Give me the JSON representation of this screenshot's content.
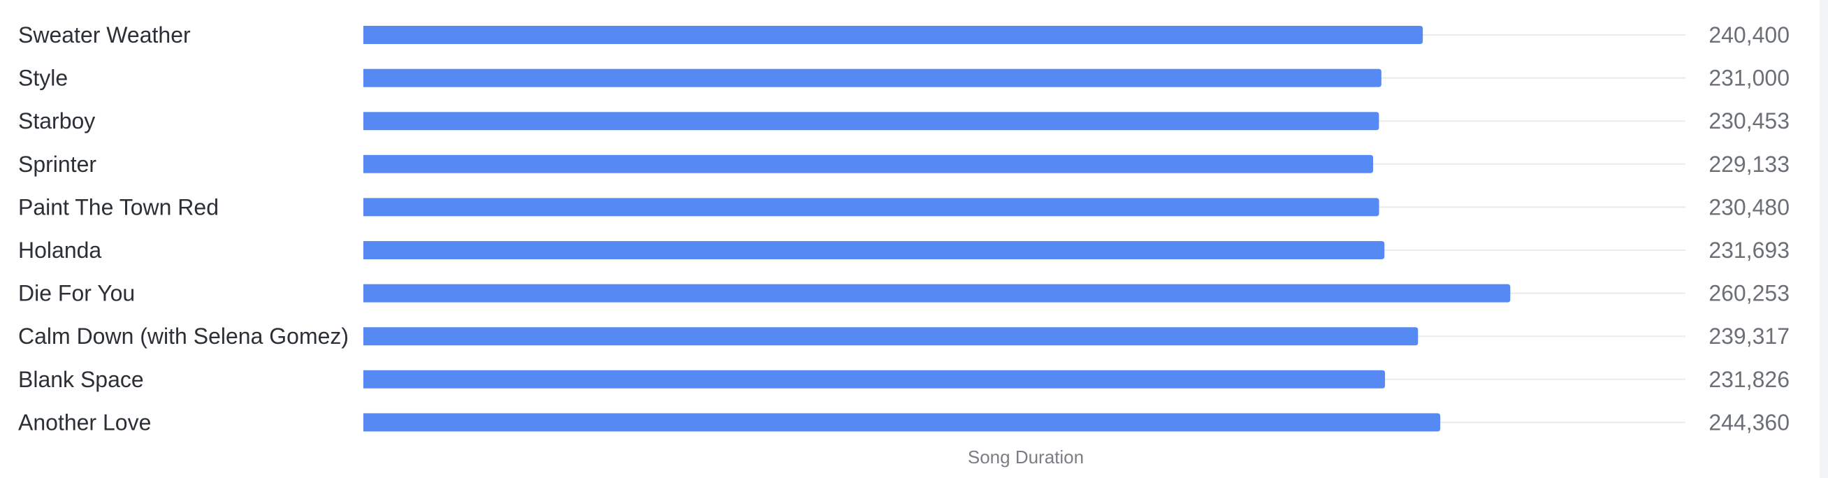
{
  "chart_data": {
    "type": "bar",
    "orientation": "horizontal",
    "categories": [
      "Sweater Weather",
      "Style",
      "Starboy",
      "Sprinter",
      "Paint The Town Red",
      "Holanda",
      "Die For You",
      "Calm Down (with Selena Gomez)",
      "Blank Space",
      "Another Love"
    ],
    "values": [
      240400,
      231000,
      230453,
      229133,
      230480,
      231693,
      260253,
      239317,
      231826,
      244360
    ],
    "value_labels": [
      "240,400",
      "231,000",
      "230,453",
      "229,133",
      "230,480",
      "231,693",
      "260,253",
      "239,317",
      "231,826",
      "244,360"
    ],
    "xlabel": "Song Duration",
    "xlim": [
      0,
      300000
    ],
    "grid": false,
    "bar_color": "#568af2"
  }
}
